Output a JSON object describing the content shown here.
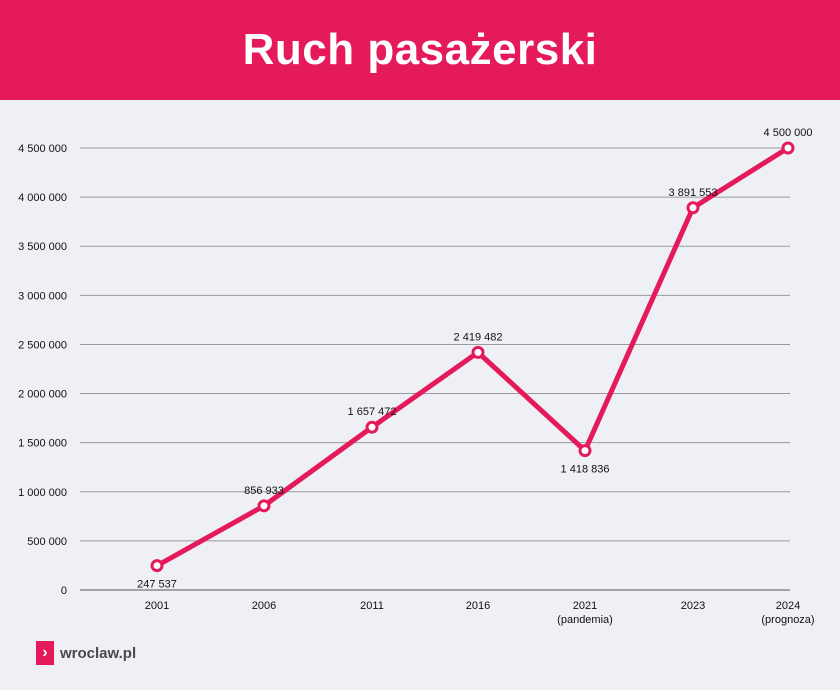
{
  "header": {
    "title": "Ruch pasażerski"
  },
  "colors": {
    "accent": "#e51a5b",
    "background": "#eef0f6",
    "grid": "#9a9a9a",
    "text": "#111111"
  },
  "footer": {
    "logo_icon": "chevron-right-icon",
    "logo_text": "wroclaw.pl"
  },
  "chart_data": {
    "type": "line",
    "title": "Ruch pasażerski",
    "categories": [
      "2001",
      "2006",
      "2011",
      "2016",
      "2021\n(pandemia)",
      "2023",
      "2024\n(prognoza)"
    ],
    "series": [
      {
        "values": [
          247537,
          856933,
          1657472,
          2419482,
          1418836,
          3891553,
          4500000
        ],
        "data_labels": [
          "247 537",
          "856 933",
          "1 657 472",
          "2 419 482",
          "1 418 836",
          "3 891 553",
          "4 500 000"
        ]
      }
    ],
    "yticks": [
      0,
      500000,
      1000000,
      1500000,
      2000000,
      2500000,
      3000000,
      3500000,
      4000000,
      4500000
    ],
    "ytick_labels": [
      "0",
      "500 000",
      "1 000 000",
      "1 500 000",
      "2 000 000",
      "2 500 000",
      "3 000 000",
      "3 500 000",
      "4 000 000",
      "4 500 000"
    ],
    "ylim": [
      0,
      4500000
    ],
    "grid": true,
    "xlabel": "",
    "ylabel": ""
  }
}
